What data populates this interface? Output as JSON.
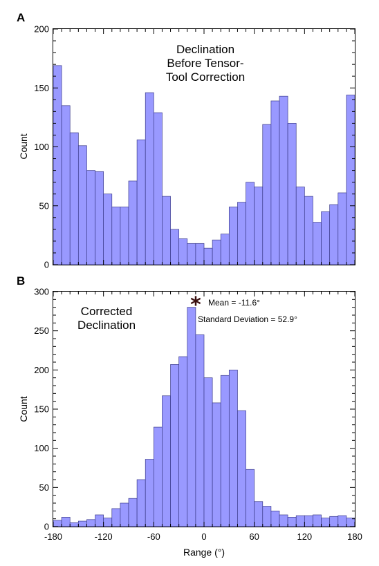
{
  "chart_data": [
    {
      "panel_label": "A",
      "type": "bar",
      "bin_edges": [
        -180,
        -170,
        -160,
        -150,
        -140,
        -130,
        -120,
        -110,
        -100,
        -90,
        -80,
        -70,
        -60,
        -50,
        -40,
        -30,
        -20,
        -10,
        0,
        10,
        20,
        30,
        40,
        50,
        60,
        70,
        80,
        90,
        100,
        110,
        120,
        130,
        140,
        150,
        160,
        170,
        180
      ],
      "values": [
        169,
        135,
        112,
        101,
        80,
        79,
        60,
        49,
        49,
        71,
        106,
        146,
        129,
        58,
        30,
        22,
        18,
        18,
        14,
        21,
        26,
        49,
        53,
        70,
        66,
        119,
        139,
        143,
        120,
        66,
        58,
        36,
        45,
        51,
        61,
        144
      ],
      "annotation_lines": [
        "Declination",
        "Before Tensor-",
        "Tool Correction"
      ],
      "ylabel": "Count",
      "xlim": [
        -180,
        180
      ],
      "ylim": [
        0,
        200
      ],
      "yticks": [
        0,
        50,
        100,
        150,
        200
      ],
      "bar_color": "#9999ff"
    },
    {
      "panel_label": "B",
      "type": "bar",
      "bin_edges": [
        -180,
        -170,
        -160,
        -150,
        -140,
        -130,
        -120,
        -110,
        -100,
        -90,
        -80,
        -70,
        -60,
        -50,
        -40,
        -30,
        -20,
        -10,
        0,
        10,
        20,
        30,
        40,
        50,
        60,
        70,
        80,
        90,
        100,
        110,
        120,
        130,
        140,
        150,
        160,
        170,
        180
      ],
      "values": [
        8,
        12,
        5,
        7,
        9,
        15,
        11,
        23,
        30,
        36,
        60,
        86,
        127,
        167,
        207,
        217,
        280,
        245,
        190,
        158,
        193,
        200,
        148,
        73,
        32,
        26,
        20,
        15,
        12,
        14,
        14,
        15,
        11,
        13,
        14,
        11
      ],
      "annotation_lines": [
        "Corrected",
        "Declination"
      ],
      "mean_marker": "*",
      "stats": [
        "Mean = -11.6°",
        "Standard Deviation = 52.9°"
      ],
      "xlabel": "Range (°)",
      "ylabel": "Count",
      "xlim": [
        -180,
        180
      ],
      "xticks": [
        -180,
        -120,
        -60,
        0,
        60,
        120,
        180
      ],
      "ylim": [
        0,
        300
      ],
      "yticks": [
        0,
        50,
        100,
        150,
        200,
        250,
        300
      ],
      "bar_color": "#9999ff"
    }
  ]
}
